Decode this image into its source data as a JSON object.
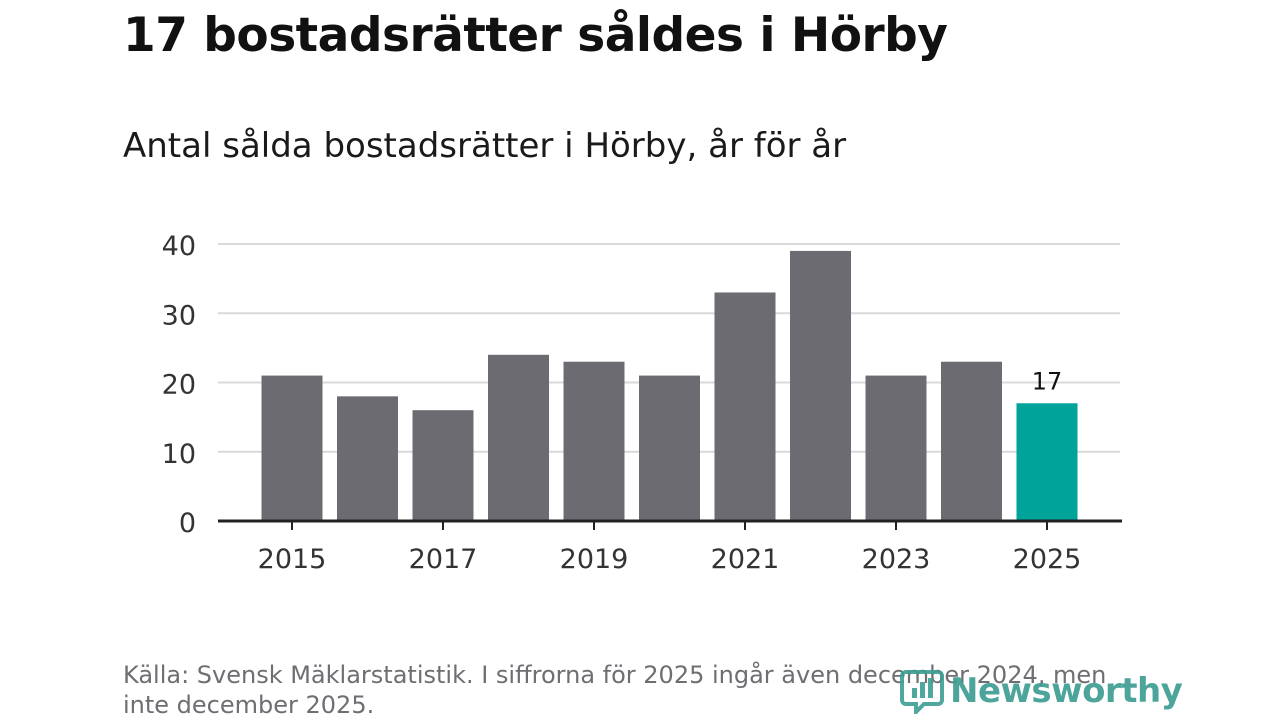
{
  "header": {
    "title": "17 bostadsrätter såldes i Hörby",
    "subtitle": "Antal sålda bostadsrätter i Hörby, år för år"
  },
  "footer": {
    "source": "Källa: Svensk Mäklarstatistik. I siffrorna för 2025 ingår även december 2024, men inte december 2025.",
    "brand": "Newsworthy"
  },
  "colors": {
    "bar": "#6c6b72",
    "highlight": "#00a39a",
    "grid": "#d9d9d9",
    "axis": "#222222",
    "brand": "#3d9d92"
  },
  "chart_data": {
    "type": "bar",
    "title": "Antal sålda bostadsrätter i Hörby, år för år",
    "xlabel": "",
    "ylabel": "",
    "categories": [
      "2015",
      "2016",
      "2017",
      "2018",
      "2019",
      "2020",
      "2021",
      "2022",
      "2023",
      "2024",
      "2025"
    ],
    "values": [
      21,
      18,
      16,
      24,
      23,
      21,
      33,
      39,
      21,
      23,
      17
    ],
    "ylim": [
      0,
      40
    ],
    "yticks": [
      0,
      10,
      20,
      30,
      40
    ],
    "xticks": [
      "2015",
      "2017",
      "2019",
      "2021",
      "2023",
      "2025"
    ],
    "highlight_category": "2025",
    "data_labels": [
      {
        "category": "2025",
        "label": "17"
      }
    ],
    "grid": true
  }
}
